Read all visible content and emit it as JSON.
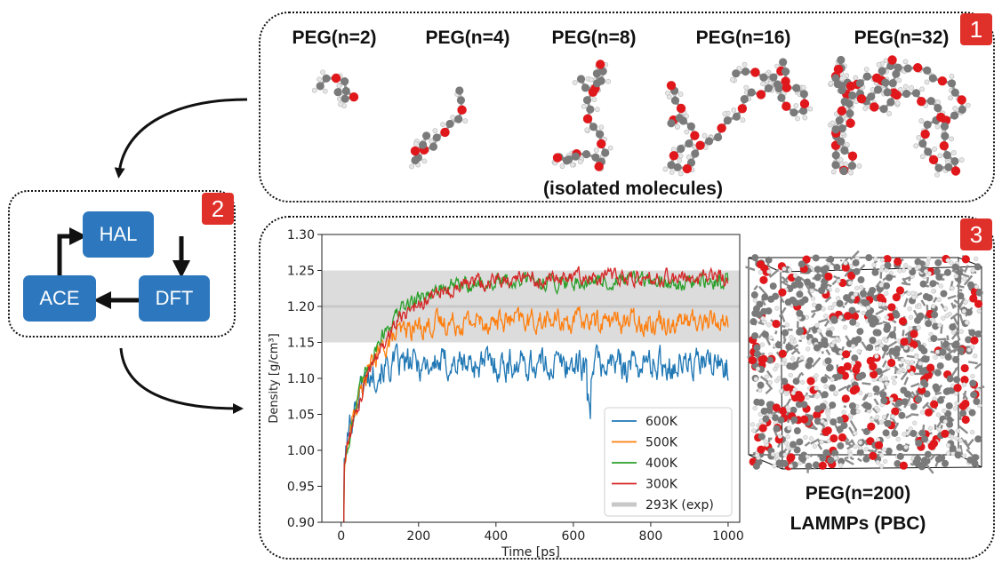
{
  "panel1": {
    "badge": "1",
    "molecules": [
      {
        "label": "PEG(n=2)",
        "n": 2
      },
      {
        "label": "PEG(n=4)",
        "n": 4
      },
      {
        "label": "PEG(n=8)",
        "n": 8
      },
      {
        "label": "PEG(n=16)",
        "n": 16
      },
      {
        "label": "PEG(n=32)",
        "n": 32
      }
    ],
    "caption": "(isolated molecules)"
  },
  "panel2": {
    "badge": "2",
    "nodes": {
      "hal": "HAL",
      "dft": "DFT",
      "ace": "ACE"
    }
  },
  "panel3": {
    "badge": "3",
    "caption_line1": "PEG(n=200)",
    "caption_line2": "LAMMPs (PBC)"
  },
  "colors": {
    "node": "#2c77bd",
    "badge": "#e0302a",
    "carbon": "#7a7a7a",
    "oxygen": "#e0181c",
    "hydrogen": "#e6e6e6"
  },
  "chart_data": {
    "type": "line",
    "xlabel": "Time [ps]",
    "ylabel": "Density [g/cm³]",
    "xlim": [
      -50,
      1030
    ],
    "ylim": [
      0.9,
      1.3
    ],
    "xticks": [
      0,
      200,
      400,
      600,
      800,
      1000
    ],
    "yticks": [
      0.9,
      0.95,
      1.0,
      1.05,
      1.1,
      1.15,
      1.2,
      1.25,
      1.3
    ],
    "legend_position": "bottom-right",
    "reference": {
      "name": "293K (exp)",
      "value": 1.2,
      "band": [
        1.15,
        1.25
      ],
      "color": "#c8c8c8"
    },
    "series": [
      {
        "name": "600K",
        "color": "#1f77b4",
        "plateau": 1.12,
        "noise": 0.018,
        "rise_ps": 30
      },
      {
        "name": "500K",
        "color": "#ff7f0e",
        "plateau": 1.18,
        "noise": 0.013,
        "rise_ps": 60
      },
      {
        "name": "400K",
        "color": "#2ca02c",
        "plateau": 1.235,
        "noise": 0.009,
        "rise_ps": 80
      },
      {
        "name": "300K",
        "color": "#d62728",
        "plateau": 1.24,
        "noise": 0.009,
        "rise_ps": 95
      }
    ]
  }
}
